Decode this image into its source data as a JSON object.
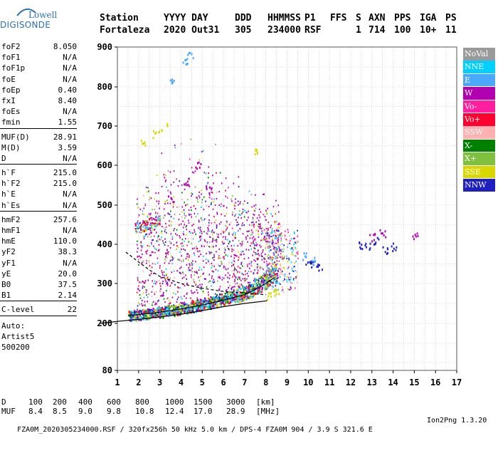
{
  "logo": {
    "line1": "Lowell",
    "line2": "DIGISONDE"
  },
  "header": {
    "columns": [
      {
        "label": "Station",
        "value": "Fortaleza"
      },
      {
        "label": "YYYY DAY",
        "value": "2020 Out31"
      },
      {
        "label": "DDD",
        "value": "305"
      },
      {
        "label": "HHMMSS",
        "value": "234000"
      },
      {
        "label": "P1",
        "value": "RSF"
      },
      {
        "label": "FFS",
        "value": ""
      },
      {
        "label": "S",
        "value": "1"
      },
      {
        "label": "AXN",
        "value": "714"
      },
      {
        "label": "PPS",
        "value": "100"
      },
      {
        "label": "IGA",
        "value": "10+"
      },
      {
        "label": "PS",
        "value": "11"
      }
    ]
  },
  "params": {
    "group1": [
      {
        "label": "foF2",
        "value": "8.050"
      },
      {
        "label": "foF1",
        "value": "N/A"
      },
      {
        "label": "foF1p",
        "value": "N/A"
      },
      {
        "label": "foE",
        "value": "N/A"
      },
      {
        "label": "foEp",
        "value": "0.40"
      },
      {
        "label": "fxI",
        "value": "8.40"
      },
      {
        "label": "foEs",
        "value": "N/A"
      },
      {
        "label": "fmin",
        "value": "1.55"
      }
    ],
    "group2": [
      {
        "label": "MUF(D)",
        "value": "28.91"
      },
      {
        "label": "M(D)",
        "value": "3.59"
      },
      {
        "label": "D",
        "value": "N/A"
      }
    ],
    "group3": [
      {
        "label": "h`F",
        "value": "215.0"
      },
      {
        "label": "h`F2",
        "value": "215.0"
      },
      {
        "label": "h`E",
        "value": "N/A"
      },
      {
        "label": "h`Es",
        "value": "N/A"
      }
    ],
    "group4": [
      {
        "label": "hmF2",
        "value": "257.6"
      },
      {
        "label": "hmF1",
        "value": "N/A"
      },
      {
        "label": "hmE",
        "value": "110.0"
      },
      {
        "label": "yF2",
        "value": "38.3"
      },
      {
        "label": "yF1",
        "value": "N/A"
      },
      {
        "label": "yE",
        "value": "20.0"
      },
      {
        "label": "B0",
        "value": "37.5"
      },
      {
        "label": "B1",
        "value": "2.14"
      }
    ],
    "group5": [
      {
        "label": "C-level",
        "value": "22"
      }
    ],
    "autoscaling": [
      "Auto:",
      "Artist5",
      "500200"
    ]
  },
  "legend": [
    {
      "label": "NoVal",
      "color": "#9a9a9a"
    },
    {
      "label": "NNE",
      "color": "#00cfff"
    },
    {
      "label": "E",
      "color": "#4aa8ff"
    },
    {
      "label": "W",
      "color": "#b000b0"
    },
    {
      "label": "Vo-",
      "color": "#ff1f9f"
    },
    {
      "label": "Vo+",
      "color": "#ff0030"
    },
    {
      "label": "SSW",
      "color": "#ffb0b0"
    },
    {
      "label": "X-",
      "color": "#008000"
    },
    {
      "label": "X+",
      "color": "#80c040"
    },
    {
      "label": "SSE",
      "color": "#d8d800"
    },
    {
      "label": "NNW",
      "color": "#2020c0"
    }
  ],
  "chart_data": {
    "type": "scatter",
    "title": "",
    "xlabel": "",
    "ylabel": "",
    "xlim": [
      1,
      17
    ],
    "ylim": [
      80,
      900
    ],
    "x_ticks": [
      1,
      2,
      3,
      4,
      5,
      6,
      7,
      8,
      9,
      10,
      11,
      12,
      13,
      14,
      15,
      16,
      17
    ],
    "y_ticks": [
      80,
      200,
      300,
      400,
      500,
      600,
      700,
      800,
      900
    ],
    "grid": true,
    "grid_minor_x": 0.5,
    "grid_minor_y": 50,
    "legend_placement": "right",
    "trace_O": {
      "x": [
        1.5,
        2.0,
        3.0,
        4.0,
        5.0,
        6.0,
        7.0,
        7.5,
        8.0,
        8.4
      ],
      "y": [
        220,
        222,
        228,
        236,
        246,
        258,
        272,
        285,
        300,
        315
      ]
    },
    "trace_X": {
      "x": [
        2.0,
        2.5,
        3.0,
        4.0,
        5.0,
        6.0,
        7.0,
        7.5,
        8.0,
        8.4
      ],
      "y": [
        222,
        225,
        230,
        240,
        252,
        265,
        282,
        300,
        320,
        345
      ]
    },
    "profile": {
      "x": [
        0.2,
        1.0,
        2.0,
        3.0,
        4.0,
        5.0,
        6.0,
        7.0,
        8.0,
        8.05
      ],
      "y": [
        200,
        205,
        210,
        216,
        223,
        232,
        242,
        250,
        256,
        257.6
      ]
    },
    "profile_dashed": {
      "x": [
        1.4,
        2.0,
        2.5,
        3.0,
        4.0,
        5.0,
        6.0,
        7.0,
        7.5,
        8.0
      ],
      "y": [
        380,
        355,
        335,
        318,
        300,
        288,
        280,
        276,
        274,
        272
      ]
    },
    "clusters": [
      {
        "name": "NNW",
        "x": [
          10.0,
          10.2,
          10.5,
          12.5,
          12.8,
          13.2,
          13.6,
          14.0
        ],
        "y": [
          360,
          350,
          345,
          400,
          395,
          410,
          388,
          395
        ]
      },
      {
        "name": "W",
        "x": [
          3.5,
          4.2,
          4.8,
          5.3,
          13.0,
          13.5,
          15.0
        ],
        "y": [
          520,
          560,
          600,
          540,
          420,
          430,
          425
        ]
      },
      {
        "name": "SSE",
        "x": [
          2.2,
          2.8,
          3.2,
          7.5,
          8.1,
          8.5
        ],
        "y": [
          660,
          680,
          700,
          640,
          270,
          280
        ]
      },
      {
        "name": "E",
        "x": [
          3.6,
          4.2,
          4.4,
          9.8,
          10.3
        ],
        "y": [
          820,
          860,
          880,
          370,
          360
        ]
      }
    ]
  },
  "footer": {
    "d_label": "D",
    "d_values": [
      "100",
      "200",
      "400",
      "600",
      "800",
      "1000",
      "1500",
      "3000",
      "[km]"
    ],
    "muf_label": "MUF",
    "muf_values": [
      "8.4",
      "8.5",
      "9.0",
      "9.8",
      "10.8",
      "12.4",
      "17.0",
      "28.9",
      "[MHz]"
    ],
    "status_line": "FZA0M_2020305234000.RSF / 320fx256h 50 kHz 5.0 km / DPS-4 FZA0M 904 / 3.9 S 321.6 E",
    "program": "Ion2Png 1.3.20"
  }
}
